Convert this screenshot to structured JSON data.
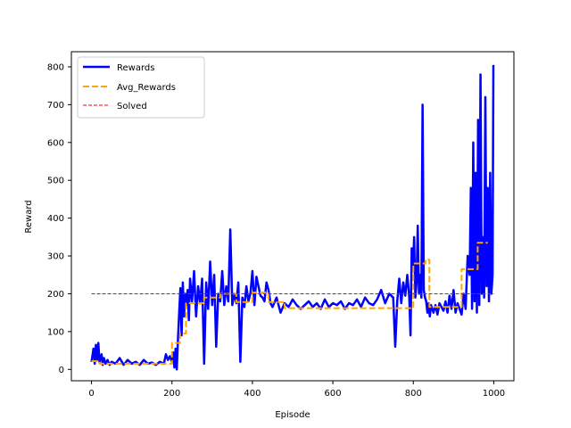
{
  "chart_data": {
    "type": "line",
    "title": "",
    "xlabel": "Episode",
    "ylabel": "Reward",
    "xlim": [
      -50,
      1050
    ],
    "ylim": [
      -30,
      840
    ],
    "xticks": [
      0,
      200,
      400,
      600,
      800,
      1000
    ],
    "yticks": [
      0,
      100,
      200,
      300,
      400,
      500,
      600,
      700,
      800
    ],
    "grid": false,
    "legend": "upper-left",
    "series": [
      {
        "name": "Rewards",
        "color": "#0000ff",
        "style": "solid",
        "x": [
          0,
          5,
          8,
          11,
          14,
          17,
          20,
          25,
          28,
          31,
          35,
          40,
          45,
          50,
          60,
          70,
          80,
          90,
          100,
          110,
          120,
          130,
          140,
          150,
          160,
          170,
          180,
          185,
          190,
          195,
          200,
          203,
          206,
          209,
          212,
          215,
          218,
          221,
          224,
          227,
          230,
          233,
          236,
          239,
          242,
          245,
          250,
          255,
          260,
          265,
          270,
          275,
          280,
          285,
          290,
          295,
          300,
          305,
          310,
          315,
          320,
          325,
          330,
          335,
          340,
          345,
          350,
          355,
          360,
          365,
          370,
          375,
          380,
          385,
          390,
          395,
          400,
          405,
          410,
          415,
          420,
          425,
          430,
          435,
          440,
          445,
          450,
          460,
          470,
          480,
          490,
          500,
          510,
          520,
          530,
          540,
          550,
          560,
          570,
          580,
          590,
          600,
          610,
          620,
          630,
          640,
          650,
          660,
          670,
          680,
          690,
          700,
          710,
          720,
          730,
          740,
          750,
          755,
          760,
          765,
          770,
          775,
          780,
          785,
          790,
          793,
          796,
          799,
          802,
          805,
          808,
          811,
          814,
          817,
          820,
          823,
          826,
          829,
          832,
          835,
          838,
          841,
          844,
          847,
          850,
          855,
          860,
          865,
          870,
          875,
          880,
          885,
          890,
          895,
          900,
          905,
          910,
          915,
          920,
          925,
          930,
          935,
          940,
          943,
          946,
          949,
          952,
          955,
          958,
          961,
          964,
          967,
          970,
          973,
          976,
          979,
          982,
          985,
          988,
          991,
          994,
          997,
          999
        ],
        "y": [
          20,
          55,
          15,
          65,
          25,
          70,
          18,
          40,
          12,
          30,
          15,
          25,
          12,
          20,
          15,
          30,
          12,
          25,
          15,
          20,
          12,
          25,
          15,
          18,
          12,
          20,
          15,
          40,
          25,
          35,
          20,
          45,
          5,
          55,
          0,
          80,
          150,
          215,
          90,
          230,
          140,
          200,
          170,
          210,
          130,
          240,
          180,
          260,
          140,
          220,
          175,
          240,
          15,
          230,
          160,
          285,
          170,
          250,
          60,
          200,
          180,
          260,
          170,
          220,
          180,
          370,
          170,
          200,
          175,
          230,
          20,
          190,
          165,
          220,
          180,
          200,
          260,
          170,
          245,
          220,
          195,
          190,
          180,
          230,
          210,
          175,
          165,
          190,
          150,
          175,
          165,
          185,
          170,
          160,
          170,
          180,
          165,
          175,
          160,
          185,
          165,
          175,
          170,
          180,
          160,
          175,
          170,
          185,
          165,
          190,
          175,
          170,
          185,
          210,
          175,
          200,
          190,
          60,
          180,
          240,
          175,
          230,
          195,
          250,
          190,
          90,
          320,
          260,
          350,
          190,
          230,
          380,
          200,
          250,
          190,
          700,
          210,
          190,
          180,
          150,
          175,
          140,
          170,
          160,
          150,
          170,
          145,
          175,
          165,
          155,
          180,
          150,
          195,
          160,
          210,
          150,
          175,
          160,
          145,
          200,
          160,
          300,
          250,
          480,
          160,
          600,
          180,
          520,
          150,
          660,
          170,
          780,
          200,
          350,
          190,
          720,
          220,
          480,
          180,
          520,
          200,
          250,
          805
        ]
      },
      {
        "name": "Avg_Rewards",
        "color": "#ffa500",
        "style": "dashed",
        "x": [
          0,
          20,
          20,
          40,
          40,
          200,
          200,
          220,
          220,
          235,
          235,
          245,
          245,
          280,
          280,
          320,
          320,
          360,
          360,
          400,
          400,
          440,
          440,
          480,
          480,
          800,
          800,
          830,
          830,
          840,
          840,
          880,
          880,
          920,
          920,
          960,
          960,
          985
        ],
        "y": [
          22,
          22,
          15,
          15,
          15,
          15,
          70,
          70,
          95,
          95,
          175,
          175,
          175,
          175,
          190,
          190,
          200,
          200,
          178,
          178,
          203,
          203,
          178,
          178,
          162,
          162,
          280,
          280,
          290,
          290,
          165,
          165,
          165,
          165,
          265,
          265,
          335,
          335
        ]
      },
      {
        "name": "Solved",
        "color": "#ff0000",
        "style": "dashed",
        "x": [
          0,
          1000
        ],
        "y": [
          200,
          200
        ]
      }
    ]
  }
}
